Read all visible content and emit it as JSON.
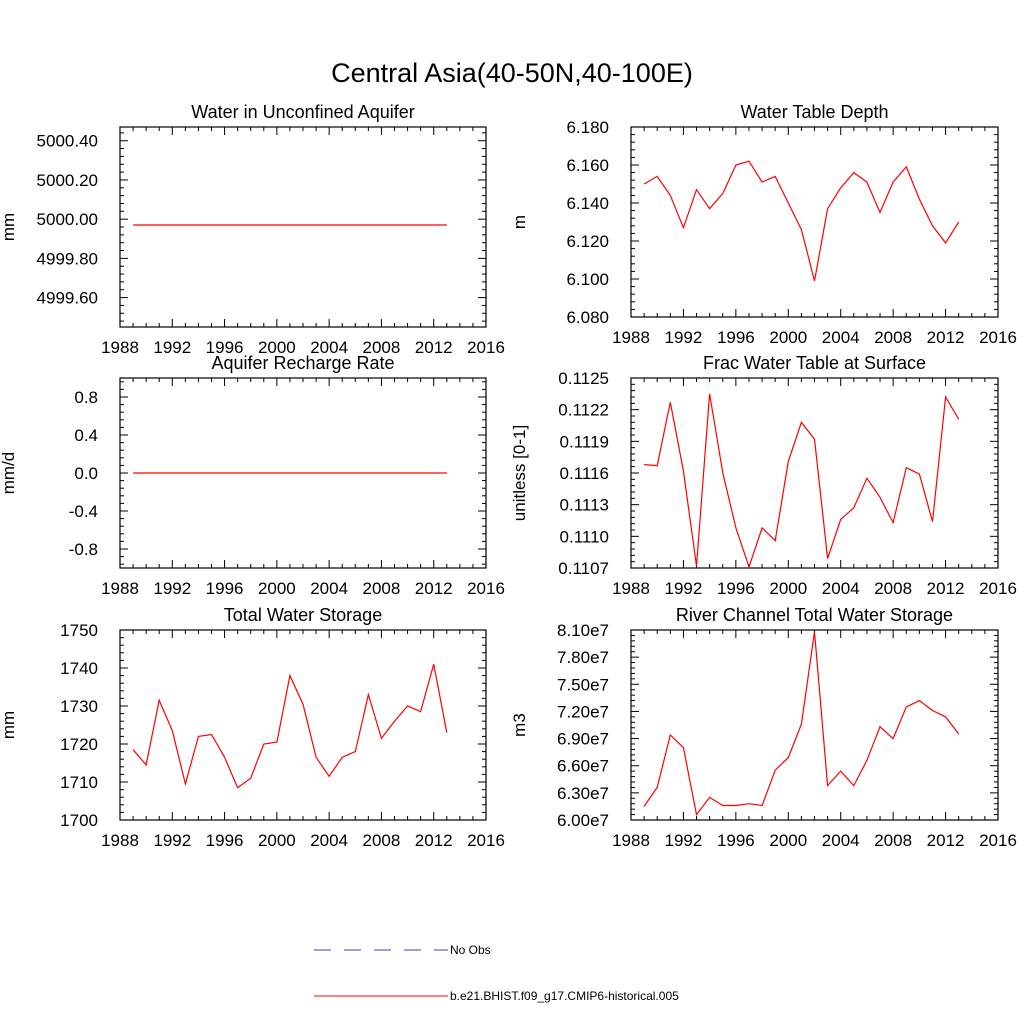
{
  "figure": {
    "title": "Central Asia(40-50N,40-100E)",
    "legend": [
      {
        "label": "No Obs",
        "color": "#3b3bbf",
        "style": "dashed"
      },
      {
        "label": "b.e21.BHIST.f09_g17.CMIP6-historical.005",
        "color": "#ff0000",
        "style": "solid"
      }
    ]
  },
  "chart_data": [
    {
      "type": "line",
      "title": "Water in Unconfined Aquifer",
      "ylabel": "mm",
      "xlim": [
        1988,
        2016
      ],
      "ylim": [
        4999.45,
        5000.47
      ],
      "xticks": [
        1988,
        1992,
        1996,
        2000,
        2004,
        2008,
        2012,
        2016
      ],
      "yticks": [
        "4999.60",
        "4999.80",
        "5000.00",
        "5000.20",
        "5000.40"
      ],
      "x": [
        1989,
        1990,
        1991,
        1992,
        1993,
        1994,
        1995,
        1996,
        1997,
        1998,
        1999,
        2000,
        2001,
        2002,
        2003,
        2004,
        2005,
        2006,
        2007,
        2008,
        2009,
        2010,
        2011,
        2012,
        2013
      ],
      "series": [
        {
          "color": "#ff0000",
          "values": [
            4999.97,
            4999.97,
            4999.97,
            4999.97,
            4999.97,
            4999.97,
            4999.97,
            4999.97,
            4999.97,
            4999.97,
            4999.97,
            4999.97,
            4999.97,
            4999.97,
            4999.97,
            4999.97,
            4999.97,
            4999.97,
            4999.97,
            4999.97,
            4999.97,
            4999.97,
            4999.97,
            4999.97,
            4999.97
          ]
        }
      ]
    },
    {
      "type": "line",
      "title": "Water Table Depth",
      "ylabel": "m",
      "xlim": [
        1988,
        2016
      ],
      "ylim": [
        6.08,
        6.18
      ],
      "xticks": [
        1988,
        1992,
        1996,
        2000,
        2004,
        2008,
        2012,
        2016
      ],
      "yticks": [
        "6.080",
        "6.100",
        "6.120",
        "6.140",
        "6.160",
        "6.180"
      ],
      "x": [
        1989,
        1990,
        1991,
        1992,
        1993,
        1994,
        1995,
        1996,
        1997,
        1998,
        1999,
        2000,
        2001,
        2002,
        2003,
        2004,
        2005,
        2006,
        2007,
        2008,
        2009,
        2010,
        2011,
        2012,
        2013
      ],
      "series": [
        {
          "color": "#ff0000",
          "values": [
            6.15,
            6.154,
            6.144,
            6.127,
            6.147,
            6.137,
            6.145,
            6.16,
            6.162,
            6.151,
            6.154,
            6.14,
            6.126,
            6.099,
            6.137,
            6.148,
            6.156,
            6.151,
            6.135,
            6.151,
            6.159,
            6.142,
            6.128,
            6.119,
            6.13
          ]
        }
      ]
    },
    {
      "type": "line",
      "title": "Aquifer Recharge Rate",
      "ylabel": "mm/d",
      "xlim": [
        1988,
        2016
      ],
      "ylim": [
        -1.0,
        1.0
      ],
      "xticks": [
        1988,
        1992,
        1996,
        2000,
        2004,
        2008,
        2012,
        2016
      ],
      "yticks": [
        "-0.8",
        "-0.4",
        "0.0",
        "0.4",
        "0.8"
      ],
      "x": [
        1989,
        1990,
        1991,
        1992,
        1993,
        1994,
        1995,
        1996,
        1997,
        1998,
        1999,
        2000,
        2001,
        2002,
        2003,
        2004,
        2005,
        2006,
        2007,
        2008,
        2009,
        2010,
        2011,
        2012,
        2013
      ],
      "series": [
        {
          "color": "#ff0000",
          "values": [
            0,
            0,
            0,
            0,
            0,
            0,
            0,
            0,
            0,
            0,
            0,
            0,
            0,
            0,
            0,
            0,
            0,
            0,
            0,
            0,
            0,
            0,
            0,
            0,
            0
          ]
        }
      ]
    },
    {
      "type": "line",
      "title": "Frac Water Table at Surface",
      "ylabel": "unitless [0-1]",
      "xlim": [
        1988,
        2016
      ],
      "ylim": [
        0.1107,
        0.1125
      ],
      "xticks": [
        1988,
        1992,
        1996,
        2000,
        2004,
        2008,
        2012,
        2016
      ],
      "yticks": [
        "0.1107",
        "0.1110",
        "0.1113",
        "0.1116",
        "0.1119",
        "0.1122",
        "0.1125"
      ],
      "x": [
        1989,
        1990,
        1991,
        1992,
        1993,
        1994,
        1995,
        1996,
        1997,
        1998,
        1999,
        2000,
        2001,
        2002,
        2003,
        2004,
        2005,
        2006,
        2007,
        2008,
        2009,
        2010,
        2011,
        2012,
        2013
      ],
      "series": [
        {
          "color": "#ff0000",
          "values": [
            0.11168,
            0.11167,
            0.11227,
            0.11162,
            0.11072,
            0.11235,
            0.1116,
            0.11108,
            0.11071,
            0.11108,
            0.11096,
            0.11171,
            0.11208,
            0.11192,
            0.11079,
            0.11116,
            0.11127,
            0.11155,
            0.11137,
            0.11113,
            0.11165,
            0.11159,
            0.11114,
            0.11232,
            0.11211
          ]
        }
      ]
    },
    {
      "type": "line",
      "title": "Total Water Storage",
      "ylabel": "mm",
      "xlim": [
        1988,
        2016
      ],
      "ylim": [
        1700,
        1750
      ],
      "xticks": [
        1988,
        1992,
        1996,
        2000,
        2004,
        2008,
        2012,
        2016
      ],
      "yticks": [
        "1700",
        "1710",
        "1720",
        "1730",
        "1740",
        "1750"
      ],
      "x": [
        1989,
        1990,
        1991,
        1992,
        1993,
        1994,
        1995,
        1996,
        1997,
        1998,
        1999,
        2000,
        2001,
        2002,
        2003,
        2004,
        2005,
        2006,
        2007,
        2008,
        2009,
        2010,
        2011,
        2012,
        2013
      ],
      "series": [
        {
          "color": "#ff0000",
          "values": [
            1718.5,
            1714.5,
            1731.5,
            1723.5,
            1709.5,
            1722,
            1722.5,
            1716.5,
            1708.5,
            1711,
            1720,
            1720.5,
            1738,
            1730.5,
            1716.5,
            1711.5,
            1716.5,
            1718,
            1733,
            1721.5,
            1726,
            1730,
            1728.5,
            1741,
            1723
          ]
        }
      ]
    },
    {
      "type": "line",
      "title": "River Channel Total Water Storage",
      "ylabel": "m3",
      "xlim": [
        1988,
        2016
      ],
      "ylim": [
        60000000,
        81000000
      ],
      "xticks": [
        1988,
        1992,
        1996,
        2000,
        2004,
        2008,
        2012,
        2016
      ],
      "yticks": [
        "6.00e7",
        "6.30e7",
        "6.60e7",
        "6.90e7",
        "7.20e7",
        "7.50e7",
        "7.80e7",
        "8.10e7"
      ],
      "x": [
        1989,
        1990,
        1991,
        1992,
        1993,
        1994,
        1995,
        1996,
        1997,
        1998,
        1999,
        2000,
        2001,
        2002,
        2003,
        2004,
        2005,
        2006,
        2007,
        2008,
        2009,
        2010,
        2011,
        2012,
        2013
      ],
      "series": [
        {
          "color": "#ff0000",
          "values": [
            61500000,
            63600000,
            69400000,
            68000000,
            60600000,
            62500000,
            61600000,
            61600000,
            61800000,
            61600000,
            65500000,
            66900000,
            70600000,
            80800000,
            63800000,
            65400000,
            63800000,
            66600000,
            70300000,
            69000000,
            72500000,
            73200000,
            72100000,
            71400000,
            69500000
          ]
        }
      ]
    }
  ]
}
